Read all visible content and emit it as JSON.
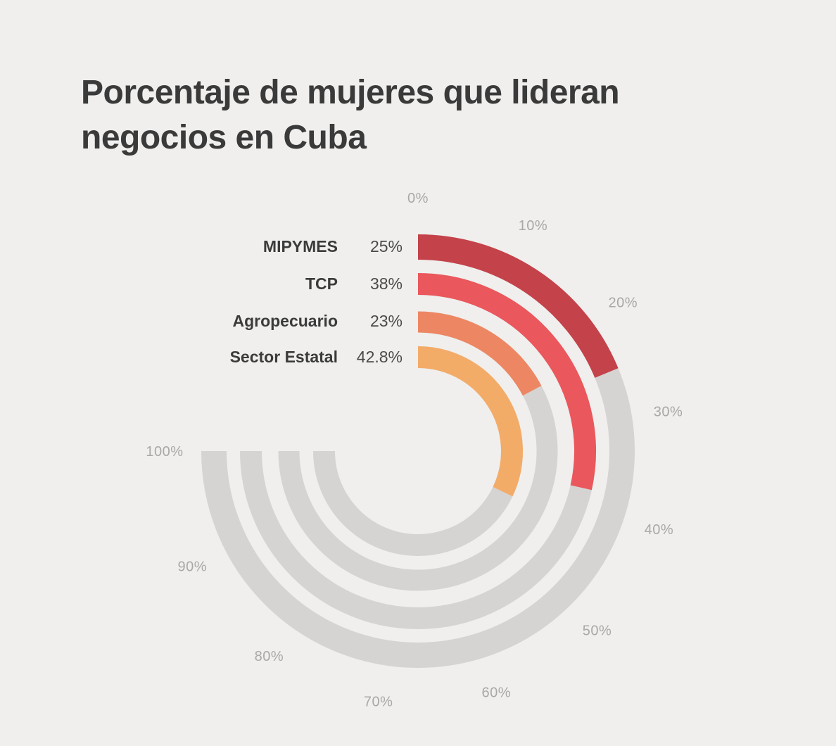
{
  "title_lines": [
    "Porcentaje de mujeres que lideran",
    "negocios en Cuba"
  ],
  "chart_data": {
    "type": "radial-bar",
    "title": "Porcentaje de mujeres que lideran negocios en Cuba",
    "categories": [
      "MIPYMES",
      "TCP",
      "Agropecuario",
      "Sector Estatal"
    ],
    "values": [
      25,
      38,
      23,
      42.8
    ],
    "value_labels": [
      "25%",
      "38%",
      "23%",
      "42.8%"
    ],
    "series_colors": [
      "#c4424a",
      "#ea575c",
      "#ed8763",
      "#f3ab68"
    ],
    "track_color": "#d5d4d2",
    "background_color": "#f0efed",
    "legend_position": "left-of-arc-start",
    "axis": {
      "min": 0,
      "max": 100,
      "tick_values": [
        0,
        10,
        20,
        30,
        40,
        50,
        60,
        70,
        80,
        90,
        100
      ],
      "tick_labels": [
        "0%",
        "10%",
        "20%",
        "30%",
        "40%",
        "50%",
        "60%",
        "70%",
        "80%",
        "90%",
        "100%"
      ],
      "tick_color": "#a9a8a6",
      "start_angle_deg": 0,
      "end_angle_deg": 270,
      "direction": "clockwise",
      "grid": false
    }
  }
}
